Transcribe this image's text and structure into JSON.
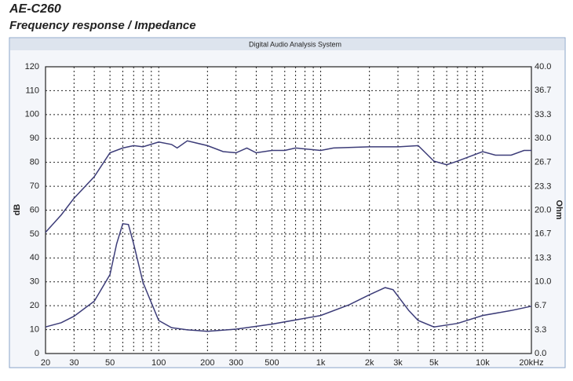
{
  "window": {
    "title": "Digital Audio Analysis System"
  },
  "chart_data": {
    "type": "line",
    "title": "AE-C260",
    "subtitle": "Frequency response / Impedance",
    "ylabel": "dB",
    "y2label": "Ohm",
    "xscale": "log",
    "grid": true,
    "xlim": [
      20,
      20000
    ],
    "xticks": [
      20,
      30,
      50,
      100,
      200,
      300,
      500,
      {
        "value": 1000,
        "label": "1k"
      },
      {
        "value": 2000,
        "label": "2k"
      },
      {
        "value": 3000,
        "label": "3k"
      },
      {
        "value": 5000,
        "label": "5k"
      },
      {
        "value": 10000,
        "label": "10k"
      },
      {
        "value": 20000,
        "label": "20kHz"
      }
    ],
    "xminorticks": [
      40,
      60,
      70,
      80,
      90,
      400,
      600,
      700,
      800,
      900,
      4000,
      6000,
      7000,
      8000,
      9000
    ],
    "ylim": [
      0,
      120
    ],
    "yticks": [
      0,
      10,
      20,
      30,
      40,
      50,
      60,
      70,
      80,
      90,
      100,
      110,
      120
    ],
    "y2lim": [
      0,
      40
    ],
    "y2ticks": [
      {
        "value": 0,
        "label": "0.0"
      },
      3.3,
      6.7,
      {
        "value": 10,
        "label": "10.0"
      },
      13.3,
      16.7,
      {
        "value": 20,
        "label": "20.0"
      },
      23.3,
      26.7,
      {
        "value": 30,
        "label": "30.0"
      },
      33.3,
      36.7,
      {
        "value": 40,
        "label": "40.0"
      }
    ],
    "series": [
      {
        "color": "#3c3c78",
        "x": [
          20,
          25,
          30,
          40,
          50,
          60,
          70,
          80,
          100,
          120,
          130,
          150,
          200,
          250,
          300,
          350,
          400,
          500,
          600,
          700,
          1000,
          1200,
          2000,
          3000,
          4000,
          5000,
          6000,
          7000,
          8000,
          10000,
          12000,
          15000,
          18000,
          20000
        ],
        "values": [
          50.7,
          58,
          65,
          74,
          84,
          86,
          87,
          86.5,
          88.5,
          87.5,
          86,
          89,
          87,
          84.5,
          84,
          86,
          84,
          85,
          85,
          86,
          85,
          86,
          86.5,
          86.5,
          87,
          80.5,
          79,
          80.5,
          82,
          84.5,
          83,
          83,
          85,
          85
        ]
      },
      {
        "color": "#3c3c78",
        "axis": "y2",
        "x": [
          20,
          25,
          30,
          40,
          50,
          55,
          60,
          65,
          70,
          80,
          100,
          120,
          150,
          200,
          300,
          500,
          1000,
          1500,
          2000,
          2500,
          2800,
          3500,
          4000,
          5000,
          7000,
          10000,
          15000,
          20000
        ],
        "values": [
          3.7,
          4.3,
          5.2,
          7.3,
          11,
          15.3,
          18.1,
          18,
          15.3,
          9.9,
          4.6,
          3.6,
          3.3,
          3.1,
          3.4,
          4.1,
          5.3,
          6.8,
          8.2,
          9.2,
          8.9,
          6.0,
          4.6,
          3.7,
          4.2,
          5.3,
          6.0,
          6.6
        ]
      }
    ]
  }
}
